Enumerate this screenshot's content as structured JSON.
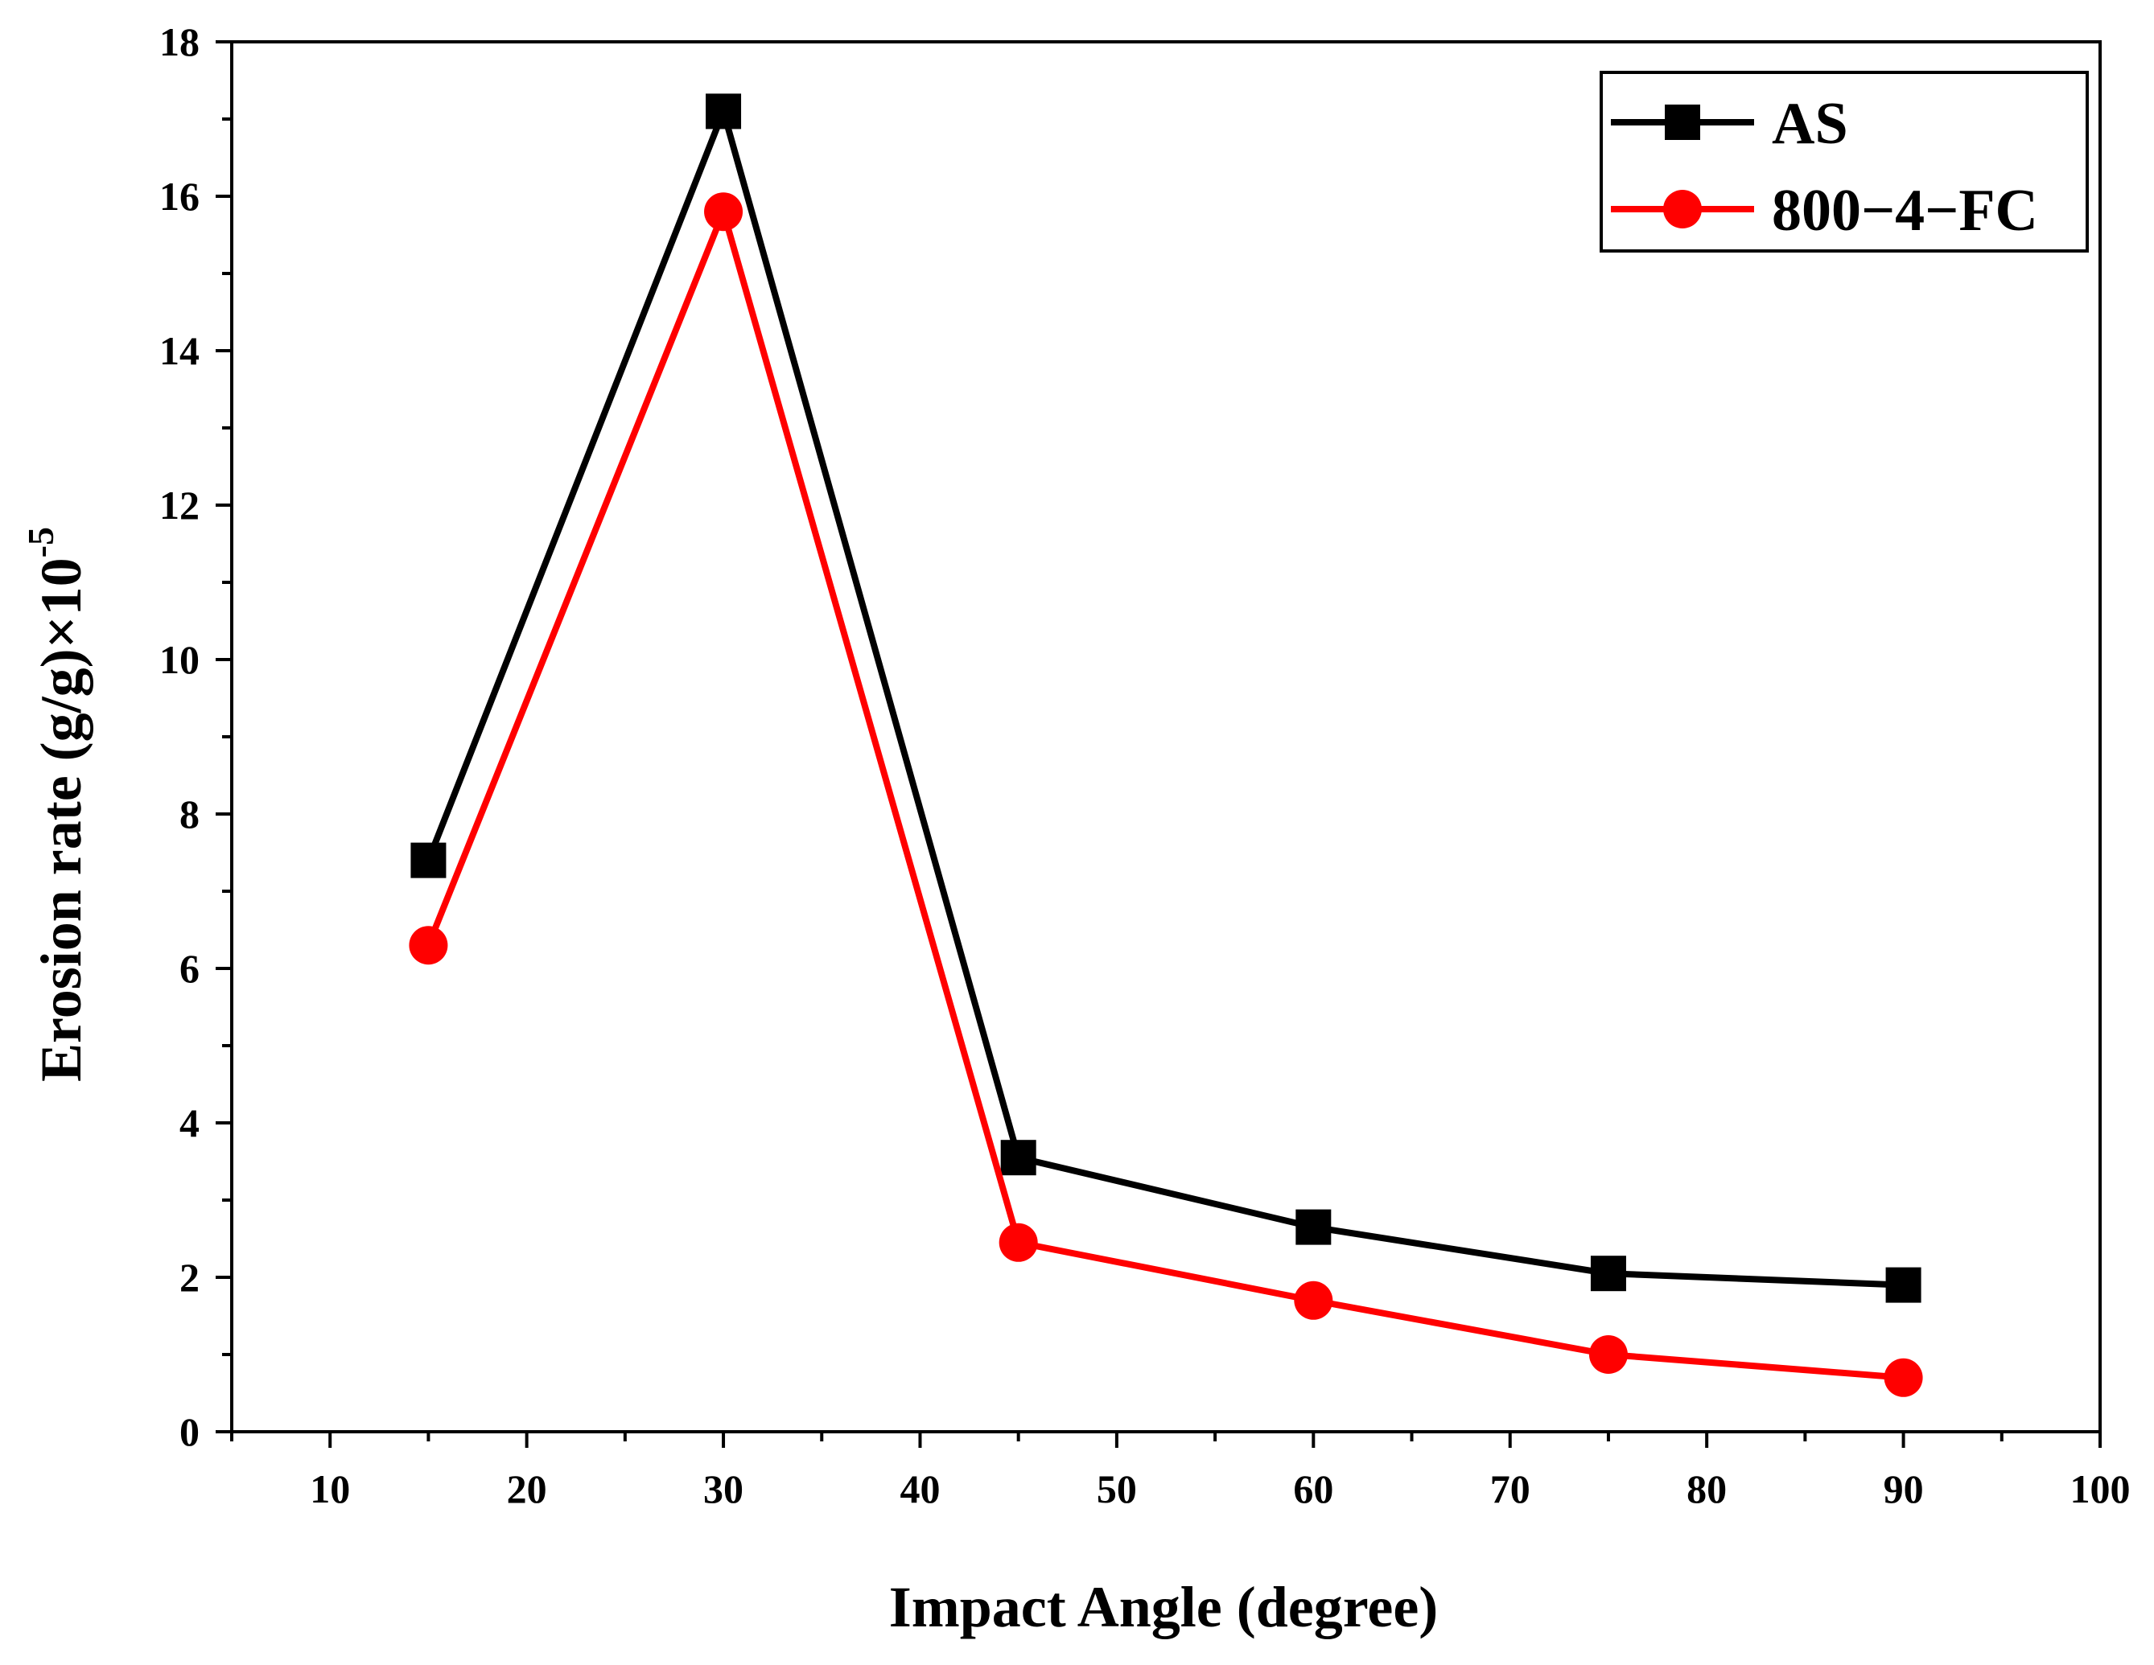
{
  "chart_data": {
    "type": "line",
    "title": "",
    "xlabel": "Impact Angle (degree)",
    "ylabel_main": "Erosion rate (g/g)×10",
    "ylabel_exponent": "-5",
    "xlim": [
      5,
      100
    ],
    "ylim": [
      0,
      18
    ],
    "xticks": [
      10,
      20,
      30,
      40,
      50,
      60,
      70,
      80,
      90,
      100
    ],
    "yticks": [
      0,
      2,
      4,
      6,
      8,
      10,
      12,
      14,
      16,
      18
    ],
    "x": [
      15,
      30,
      45,
      60,
      75,
      90
    ],
    "series": [
      {
        "name": "AS",
        "marker": "square",
        "color": "#000000",
        "values": [
          7.4,
          17.1,
          3.55,
          2.65,
          2.05,
          1.9
        ]
      },
      {
        "name": "800−4−FC",
        "marker": "circle",
        "color": "#ff0000",
        "values": [
          6.3,
          15.8,
          2.45,
          1.7,
          1.0,
          0.7
        ]
      }
    ],
    "legend_position": "top-right",
    "grid": false
  }
}
